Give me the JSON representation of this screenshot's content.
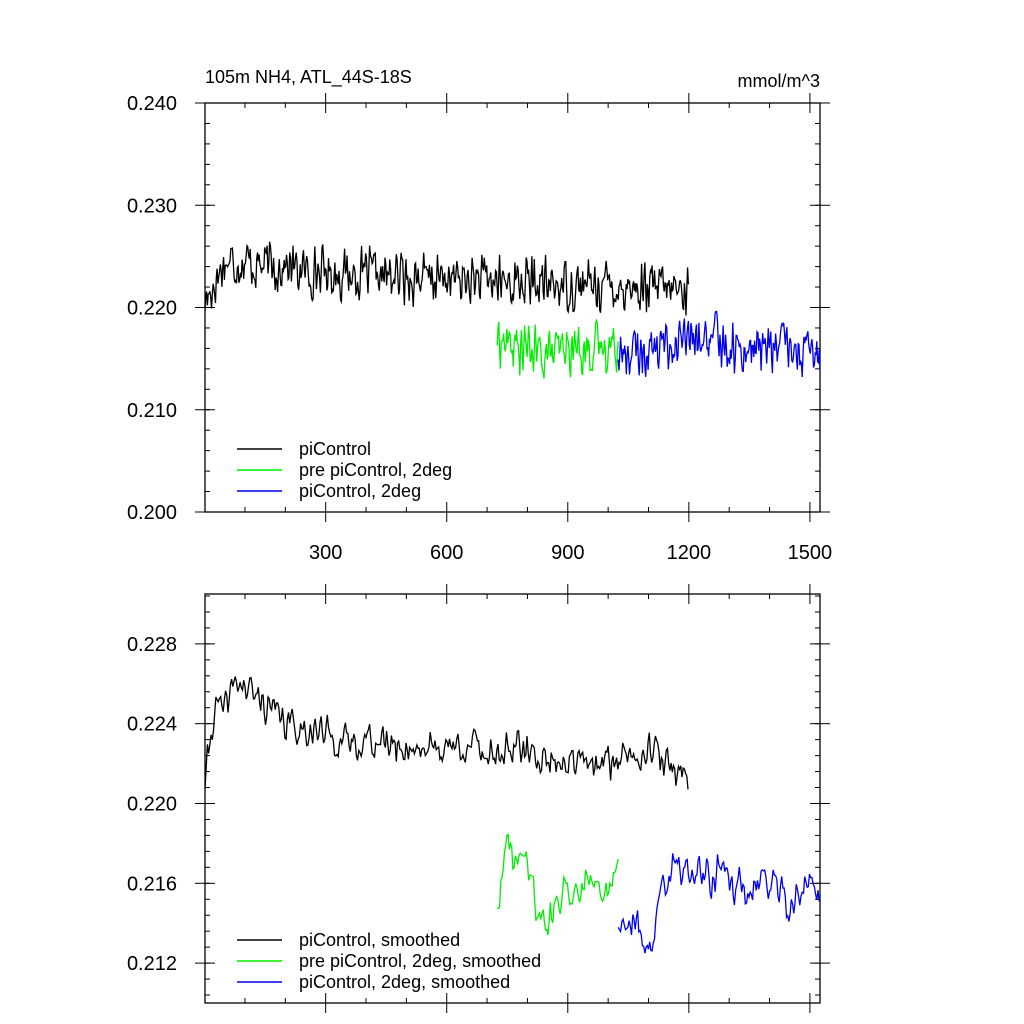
{
  "chart_data": [
    {
      "type": "line",
      "title": "105m NH4, ATL_44S-18S",
      "units": "mmol/m^3",
      "xlim": [
        1,
        1525
      ],
      "ylim": [
        0.2,
        0.24
      ],
      "x_ticks": [
        "300",
        "600",
        "900",
        "1200",
        "1500"
      ],
      "y_ticks": [
        "0.200",
        "0.210",
        "0.220",
        "0.230",
        "0.240"
      ],
      "series": [
        {
          "name": "piControl",
          "color": "#000000",
          "x": [
            1,
            50,
            100,
            150,
            200,
            250,
            300,
            350,
            400,
            450,
            500,
            550,
            600,
            650,
            700,
            750,
            800,
            850,
            900,
            950,
            1000,
            1050,
            1100,
            1150,
            1200
          ],
          "y": [
            0.2205,
            0.2245,
            0.2245,
            0.224,
            0.224,
            0.2235,
            0.2235,
            0.2232,
            0.2232,
            0.223,
            0.223,
            0.2228,
            0.2228,
            0.2226,
            0.2226,
            0.2225,
            0.2224,
            0.2222,
            0.2222,
            0.2222,
            0.2222,
            0.222,
            0.2218,
            0.2218,
            0.2216
          ]
        },
        {
          "name": "pre piControl, 2deg",
          "color": "#00ee00",
          "x": [
            725,
            775,
            825,
            875,
            925,
            975,
            1025
          ],
          "y": [
            0.217,
            0.216,
            0.2155,
            0.2155,
            0.216,
            0.216,
            0.2165
          ]
        },
        {
          "name": "piControl, 2deg",
          "color": "#0000ee",
          "x": [
            1025,
            1075,
            1125,
            1175,
            1225,
            1275,
            1325,
            1375,
            1425,
            1475,
            1525
          ],
          "y": [
            0.2155,
            0.2155,
            0.216,
            0.2165,
            0.2168,
            0.2168,
            0.216,
            0.216,
            0.2162,
            0.2155,
            0.215
          ]
        }
      ]
    },
    {
      "type": "line",
      "xlim": [
        1,
        1525
      ],
      "ylim": [
        0.21,
        0.2305
      ],
      "y_ticks": [
        "0.212",
        "0.216",
        "0.220",
        "0.224",
        "0.228"
      ],
      "series": [
        {
          "name": "piControl, smoothed",
          "color": "#000000",
          "x": [
            1,
            25,
            50,
            75,
            100,
            150,
            200,
            250,
            300,
            350,
            400,
            450,
            500,
            550,
            600,
            650,
            700,
            750,
            800,
            850,
            900,
            950,
            1000,
            1050,
            1100,
            1150,
            1200
          ],
          "y": [
            0.221,
            0.225,
            0.2245,
            0.2262,
            0.2258,
            0.225,
            0.224,
            0.2238,
            0.2235,
            0.223,
            0.2232,
            0.223,
            0.2228,
            0.2228,
            0.2228,
            0.223,
            0.2225,
            0.2228,
            0.2225,
            0.2222,
            0.2222,
            0.2218,
            0.222,
            0.2225,
            0.2228,
            0.2218,
            0.2215
          ]
        },
        {
          "name": "pre piControl, 2deg, smoothed",
          "color": "#00ee00",
          "x": [
            725,
            750,
            775,
            800,
            825,
            850,
            875,
            900,
            925,
            950,
            975,
            1000,
            1025
          ],
          "y": [
            0.215,
            0.218,
            0.217,
            0.2175,
            0.2145,
            0.214,
            0.215,
            0.216,
            0.2155,
            0.2168,
            0.216,
            0.2155,
            0.2165
          ]
        },
        {
          "name": "piControl, 2deg, smoothed",
          "color": "#0000ee",
          "x": [
            1025,
            1050,
            1075,
            1100,
            1125,
            1150,
            1175,
            1200,
            1225,
            1250,
            1275,
            1300,
            1325,
            1350,
            1375,
            1400,
            1425,
            1450,
            1475,
            1500,
            1525
          ],
          "y": [
            0.214,
            0.2145,
            0.2138,
            0.2125,
            0.215,
            0.2165,
            0.2168,
            0.2165,
            0.217,
            0.216,
            0.2168,
            0.216,
            0.2158,
            0.2155,
            0.216,
            0.216,
            0.2158,
            0.2145,
            0.2155,
            0.216,
            0.215
          ]
        }
      ]
    }
  ]
}
